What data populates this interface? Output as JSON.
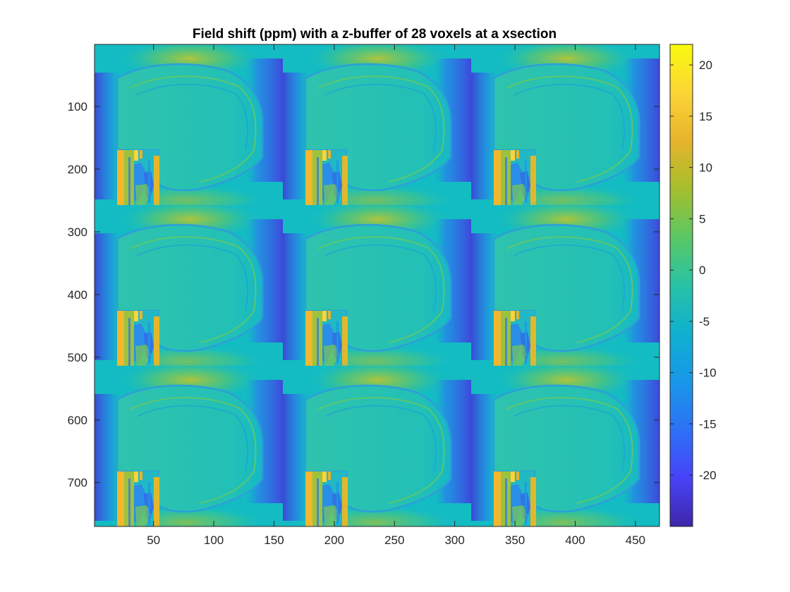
{
  "chart_data": {
    "type": "heatmap",
    "title": "Field shift (ppm) with a z-buffer of 28 voxels at a xsection",
    "xlabel": "",
    "ylabel": "",
    "xlim": [
      1,
      470
    ],
    "ylim": [
      1,
      770
    ],
    "y_direction": "reversed",
    "x_ticks": [
      50,
      100,
      150,
      200,
      250,
      300,
      350,
      400,
      450
    ],
    "y_ticks": [
      100,
      200,
      300,
      400,
      500,
      600,
      700
    ],
    "grid": false,
    "tiles": {
      "rows": 3,
      "cols": 3
    },
    "colormap": "parula",
    "colorbar": {
      "clim": [
        -25,
        22
      ],
      "ticks": [
        20,
        15,
        10,
        5,
        0,
        -5,
        -10,
        -15,
        -20
      ],
      "stops": [
        "#3e26a8",
        "#4743f8",
        "#2d71f6",
        "#1997e8",
        "#0fb0d0",
        "#28c2a6",
        "#5ac864",
        "#a5be2d",
        "#e7b42b",
        "#fcd536",
        "#f9fb0e"
      ]
    },
    "colors": {
      "background": "#13bcc3",
      "skull": "#2fc1a4",
      "edge_high": "#f3b731",
      "edge_low": "#3a55f0",
      "air_low": "#3e3cd6"
    }
  }
}
